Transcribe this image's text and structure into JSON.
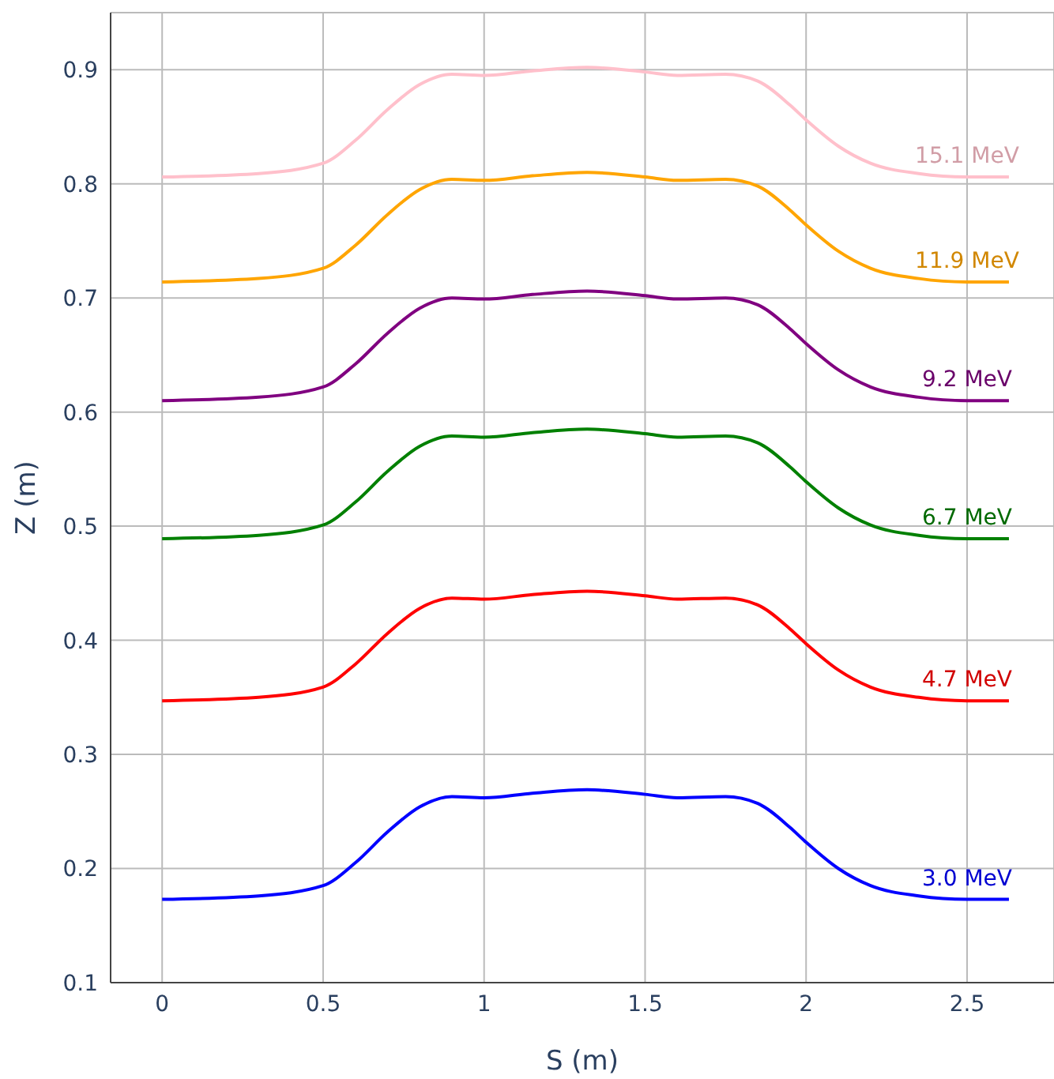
{
  "chart_data": {
    "type": "line",
    "xlabel": "S (m)",
    "ylabel": "Z (m)",
    "x": [
      0,
      0.3,
      0.5,
      0.6,
      0.7,
      0.8,
      0.9,
      1.0,
      1.15,
      1.32,
      1.5,
      1.6,
      1.75,
      1.85,
      1.95,
      2.0,
      2.1,
      2.2,
      2.35,
      2.5,
      2.63
    ],
    "series": [
      {
        "name": "3.0 MeV",
        "color": "#0000ff",
        "values": [
          0.173,
          0.176,
          0.185,
          0.205,
          0.232,
          0.254,
          0.263,
          0.262,
          0.266,
          0.269,
          0.265,
          0.262,
          0.263,
          0.257,
          0.236,
          0.223,
          0.2,
          0.185,
          0.176,
          0.173,
          0.173
        ]
      },
      {
        "name": "4.7 MeV",
        "color": "#ff0000",
        "values": [
          0.347,
          0.35,
          0.359,
          0.379,
          0.406,
          0.428,
          0.437,
          0.436,
          0.44,
          0.443,
          0.439,
          0.436,
          0.437,
          0.431,
          0.41,
          0.397,
          0.374,
          0.359,
          0.35,
          0.347,
          0.347
        ]
      },
      {
        "name": "6.7 MeV",
        "color": "#008000",
        "values": [
          0.489,
          0.492,
          0.501,
          0.521,
          0.548,
          0.57,
          0.579,
          0.578,
          0.582,
          0.585,
          0.581,
          0.578,
          0.579,
          0.573,
          0.552,
          0.539,
          0.516,
          0.501,
          0.492,
          0.489,
          0.489
        ]
      },
      {
        "name": "9.2 MeV",
        "color": "#800080",
        "values": [
          0.61,
          0.613,
          0.622,
          0.642,
          0.669,
          0.691,
          0.7,
          0.699,
          0.703,
          0.706,
          0.702,
          0.699,
          0.7,
          0.694,
          0.673,
          0.66,
          0.637,
          0.622,
          0.613,
          0.61,
          0.61
        ]
      },
      {
        "name": "11.9 MeV",
        "color": "#ffa500",
        "values": [
          0.714,
          0.717,
          0.726,
          0.746,
          0.773,
          0.795,
          0.804,
          0.803,
          0.807,
          0.81,
          0.806,
          0.803,
          0.804,
          0.798,
          0.777,
          0.764,
          0.741,
          0.726,
          0.717,
          0.714,
          0.714
        ]
      },
      {
        "name": "15.1 MeV",
        "color": "#ffc0cb",
        "values": [
          0.806,
          0.809,
          0.818,
          0.838,
          0.865,
          0.887,
          0.896,
          0.895,
          0.899,
          0.902,
          0.898,
          0.895,
          0.896,
          0.89,
          0.869,
          0.856,
          0.833,
          0.818,
          0.809,
          0.806,
          0.806
        ]
      }
    ],
    "xlim": [
      -0.16,
      2.77
    ],
    "xticks": [
      0,
      0.5,
      1,
      1.5,
      2,
      2.5
    ],
    "ylim": [
      0.1,
      0.95
    ],
    "yticks": [
      0.1,
      0.2,
      0.3,
      0.4,
      0.5,
      0.6,
      0.7,
      0.8,
      0.9
    ],
    "grid": true,
    "legend": false,
    "marker": "none",
    "line_style": "solid"
  }
}
